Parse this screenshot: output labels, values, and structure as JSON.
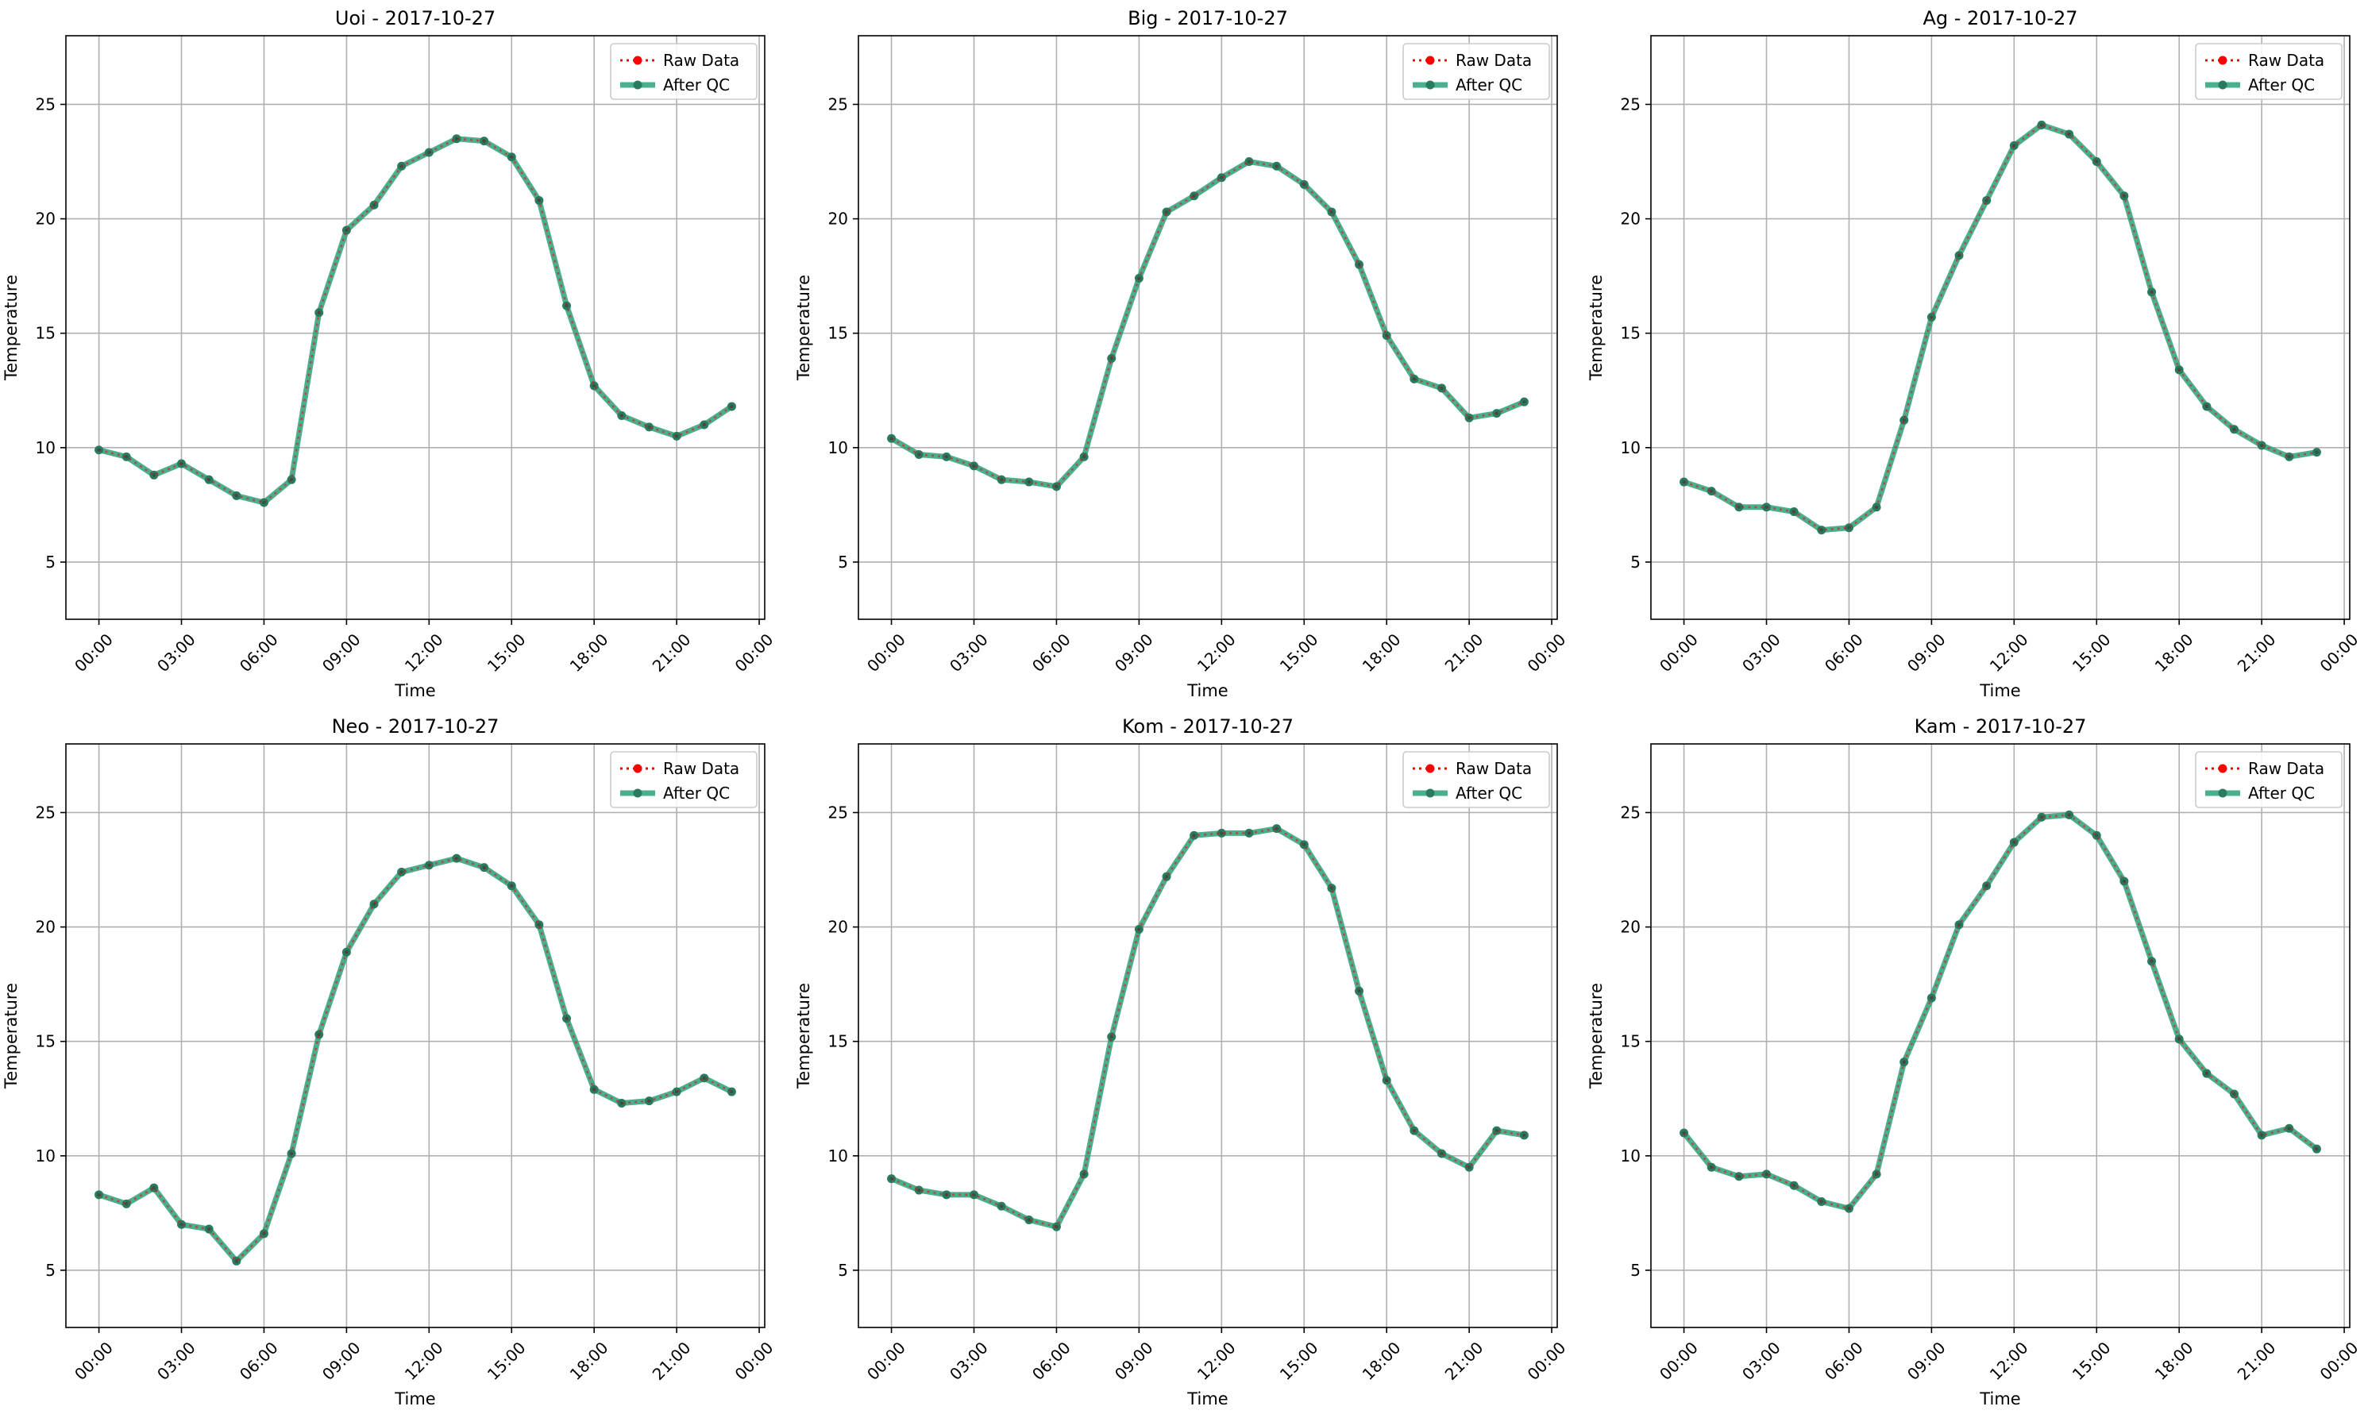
{
  "figure": {
    "legend_raw_label": "Raw Data",
    "legend_qc_label": "After QC"
  },
  "colors": {
    "raw": "#ff0000",
    "qc": "#2ca07a",
    "qc_marker": "#2a7a5e",
    "grid": "#b0b0b0"
  },
  "chart_data": [
    {
      "type": "line",
      "title": "Uoi - 2017-10-27",
      "xlabel": "Time",
      "ylabel": "Temperature",
      "xticks": [
        "00:00",
        "03:00",
        "06:00",
        "09:00",
        "12:00",
        "15:00",
        "18:00",
        "21:00",
        "00:00"
      ],
      "xlim": [
        -1.2,
        24.2
      ],
      "ylim": [
        2.5,
        28
      ],
      "yticks": [
        5,
        10,
        15,
        20,
        25
      ],
      "grid": true,
      "legend": "upper-right",
      "x": [
        0,
        1,
        2,
        3,
        4,
        5,
        6,
        7,
        8,
        9,
        10,
        11,
        12,
        13,
        14,
        15,
        16,
        17,
        18,
        19,
        20,
        21,
        22,
        23
      ],
      "series": [
        {
          "name": "Raw Data",
          "values": [
            9.9,
            9.6,
            8.8,
            9.3,
            8.6,
            7.9,
            7.6,
            8.6,
            15.9,
            19.5,
            20.6,
            22.3,
            22.9,
            23.5,
            23.4,
            22.7,
            20.8,
            16.2,
            12.7,
            11.4,
            10.9,
            10.5,
            11.0,
            11.8
          ]
        },
        {
          "name": "After QC",
          "values": [
            9.9,
            9.6,
            8.8,
            9.3,
            8.6,
            7.9,
            7.6,
            8.6,
            15.9,
            19.5,
            20.6,
            22.3,
            22.9,
            23.5,
            23.4,
            22.7,
            20.8,
            16.2,
            12.7,
            11.4,
            10.9,
            10.5,
            11.0,
            11.8
          ]
        }
      ]
    },
    {
      "type": "line",
      "title": "Big - 2017-10-27",
      "xlabel": "Time",
      "ylabel": "Temperature",
      "xticks": [
        "00:00",
        "03:00",
        "06:00",
        "09:00",
        "12:00",
        "15:00",
        "18:00",
        "21:00",
        "00:00"
      ],
      "xlim": [
        -1.2,
        24.2
      ],
      "ylim": [
        2.5,
        28
      ],
      "yticks": [
        5,
        10,
        15,
        20,
        25
      ],
      "grid": true,
      "legend": "upper-right",
      "x": [
        0,
        1,
        2,
        3,
        4,
        5,
        6,
        7,
        8,
        9,
        10,
        11,
        12,
        13,
        14,
        15,
        16,
        17,
        18,
        19,
        20,
        21,
        22,
        23
      ],
      "series": [
        {
          "name": "Raw Data",
          "values": [
            10.4,
            9.7,
            9.6,
            9.2,
            8.6,
            8.5,
            8.3,
            9.6,
            13.9,
            17.4,
            20.3,
            21.0,
            21.8,
            22.5,
            22.3,
            21.5,
            20.3,
            18.0,
            14.9,
            13.0,
            12.6,
            11.3,
            11.5,
            12.0
          ]
        },
        {
          "name": "After QC",
          "values": [
            10.4,
            9.7,
            9.6,
            9.2,
            8.6,
            8.5,
            8.3,
            9.6,
            13.9,
            17.4,
            20.3,
            21.0,
            21.8,
            22.5,
            22.3,
            21.5,
            20.3,
            18.0,
            14.9,
            13.0,
            12.6,
            11.3,
            11.5,
            12.0
          ]
        }
      ]
    },
    {
      "type": "line",
      "title": "Ag - 2017-10-27",
      "xlabel": "Time",
      "ylabel": "Temperature",
      "xticks": [
        "00:00",
        "03:00",
        "06:00",
        "09:00",
        "12:00",
        "15:00",
        "18:00",
        "21:00",
        "00:00"
      ],
      "xlim": [
        -1.2,
        24.2
      ],
      "ylim": [
        2.5,
        28
      ],
      "yticks": [
        5,
        10,
        15,
        20,
        25
      ],
      "grid": true,
      "legend": "upper-right",
      "x": [
        0,
        1,
        2,
        3,
        4,
        5,
        6,
        7,
        8,
        9,
        10,
        11,
        12,
        13,
        14,
        15,
        16,
        17,
        18,
        19,
        20,
        21,
        22,
        23
      ],
      "series": [
        {
          "name": "Raw Data",
          "values": [
            8.5,
            8.1,
            7.4,
            7.4,
            7.2,
            6.4,
            6.5,
            7.4,
            11.2,
            15.7,
            18.4,
            20.8,
            23.2,
            24.1,
            23.7,
            22.5,
            21.0,
            16.8,
            13.4,
            11.8,
            10.8,
            10.1,
            9.6,
            9.8
          ]
        },
        {
          "name": "After QC",
          "values": [
            8.5,
            8.1,
            7.4,
            7.4,
            7.2,
            6.4,
            6.5,
            7.4,
            11.2,
            15.7,
            18.4,
            20.8,
            23.2,
            24.1,
            23.7,
            22.5,
            21.0,
            16.8,
            13.4,
            11.8,
            10.8,
            10.1,
            9.6,
            9.8
          ]
        }
      ]
    },
    {
      "type": "line",
      "title": "Neo - 2017-10-27",
      "xlabel": "Time",
      "ylabel": "Temperature",
      "xticks": [
        "00:00",
        "03:00",
        "06:00",
        "09:00",
        "12:00",
        "15:00",
        "18:00",
        "21:00",
        "00:00"
      ],
      "xlim": [
        -1.2,
        24.2
      ],
      "ylim": [
        2.5,
        28
      ],
      "yticks": [
        5,
        10,
        15,
        20,
        25
      ],
      "grid": true,
      "legend": "upper-right",
      "x": [
        0,
        1,
        2,
        3,
        4,
        5,
        6,
        7,
        8,
        9,
        10,
        11,
        12,
        13,
        14,
        15,
        16,
        17,
        18,
        19,
        20,
        21,
        22,
        23
      ],
      "series": [
        {
          "name": "Raw Data",
          "values": [
            8.3,
            7.9,
            8.6,
            7.0,
            6.8,
            5.4,
            6.6,
            10.1,
            15.3,
            18.9,
            21.0,
            22.4,
            22.7,
            23.0,
            22.6,
            21.8,
            20.1,
            16.0,
            12.9,
            12.3,
            12.4,
            12.8,
            13.4,
            12.8
          ]
        },
        {
          "name": "After QC",
          "values": [
            8.3,
            7.9,
            8.6,
            7.0,
            6.8,
            5.4,
            6.6,
            10.1,
            15.3,
            18.9,
            21.0,
            22.4,
            22.7,
            23.0,
            22.6,
            21.8,
            20.1,
            16.0,
            12.9,
            12.3,
            12.4,
            12.8,
            13.4,
            12.8
          ]
        }
      ]
    },
    {
      "type": "line",
      "title": "Kom - 2017-10-27",
      "xlabel": "Time",
      "ylabel": "Temperature",
      "xticks": [
        "00:00",
        "03:00",
        "06:00",
        "09:00",
        "12:00",
        "15:00",
        "18:00",
        "21:00",
        "00:00"
      ],
      "xlim": [
        -1.2,
        24.2
      ],
      "ylim": [
        2.5,
        28
      ],
      "yticks": [
        5,
        10,
        15,
        20,
        25
      ],
      "grid": true,
      "legend": "upper-right",
      "x": [
        0,
        1,
        2,
        3,
        4,
        5,
        6,
        7,
        8,
        9,
        10,
        11,
        12,
        13,
        14,
        15,
        16,
        17,
        18,
        19,
        20,
        21,
        22,
        23
      ],
      "series": [
        {
          "name": "Raw Data",
          "values": [
            9.0,
            8.5,
            8.3,
            8.3,
            7.8,
            7.2,
            6.9,
            9.2,
            15.2,
            19.9,
            22.2,
            24.0,
            24.1,
            24.1,
            24.3,
            23.6,
            21.7,
            17.2,
            13.3,
            11.1,
            10.1,
            9.5,
            11.1,
            10.9
          ]
        },
        {
          "name": "After QC",
          "values": [
            9.0,
            8.5,
            8.3,
            8.3,
            7.8,
            7.2,
            6.9,
            9.2,
            15.2,
            19.9,
            22.2,
            24.0,
            24.1,
            24.1,
            24.3,
            23.6,
            21.7,
            17.2,
            13.3,
            11.1,
            10.1,
            9.5,
            11.1,
            10.9
          ]
        }
      ]
    },
    {
      "type": "line",
      "title": "Kam - 2017-10-27",
      "xlabel": "Time",
      "ylabel": "Temperature",
      "xticks": [
        "00:00",
        "03:00",
        "06:00",
        "09:00",
        "12:00",
        "15:00",
        "18:00",
        "21:00",
        "00:00"
      ],
      "xlim": [
        -1.2,
        24.2
      ],
      "ylim": [
        2.5,
        28
      ],
      "yticks": [
        5,
        10,
        15,
        20,
        25
      ],
      "grid": true,
      "legend": "upper-right",
      "x": [
        0,
        1,
        2,
        3,
        4,
        5,
        6,
        7,
        8,
        9,
        10,
        11,
        12,
        13,
        14,
        15,
        16,
        17,
        18,
        19,
        20,
        21,
        22,
        23
      ],
      "series": [
        {
          "name": "Raw Data",
          "values": [
            11.0,
            9.5,
            9.1,
            9.2,
            8.7,
            8.0,
            7.7,
            9.2,
            14.1,
            16.9,
            20.1,
            21.8,
            23.7,
            24.8,
            24.9,
            24.0,
            22.0,
            18.5,
            15.1,
            13.6,
            12.7,
            10.9,
            11.2,
            10.3
          ]
        },
        {
          "name": "After QC",
          "values": [
            11.0,
            9.5,
            9.1,
            9.2,
            8.7,
            8.0,
            7.7,
            9.2,
            14.1,
            16.9,
            20.1,
            21.8,
            23.7,
            24.8,
            24.9,
            24.0,
            22.0,
            18.5,
            15.1,
            13.6,
            12.7,
            10.9,
            11.2,
            10.3
          ]
        }
      ]
    }
  ]
}
